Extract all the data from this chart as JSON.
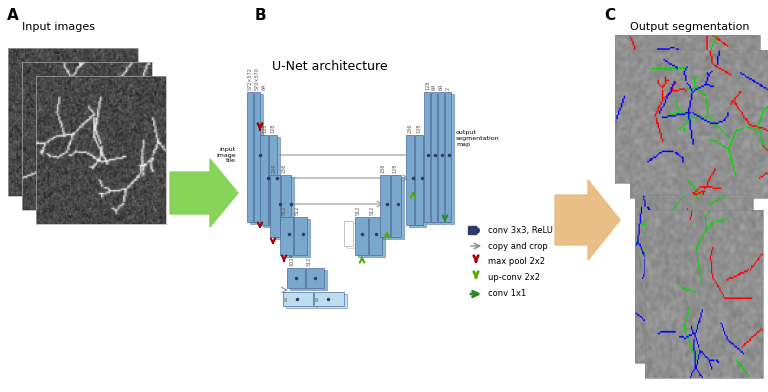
{
  "background_color": "#ffffff",
  "green_arrow_color": "#88d45a",
  "orange_arrow_color": "#e8b87a",
  "unet_blue": "#7aa7cc",
  "unet_blue_light": "#a8c8e8",
  "unet_dark_blue": "#2d3a6b",
  "legend_items": [
    {
      "label": "conv 3x3, ReLU",
      "color": "#2d3a6b"
    },
    {
      "label": "copy and crop",
      "color": "#888888"
    },
    {
      "label": "max pool 2x2",
      "color": "#aa0000"
    },
    {
      "label": "up-conv 2x2",
      "color": "#55aa00"
    },
    {
      "label": "conv 1x1",
      "color": "#228b22"
    }
  ],
  "fig_width": 7.68,
  "fig_height": 3.92,
  "dpi": 100
}
